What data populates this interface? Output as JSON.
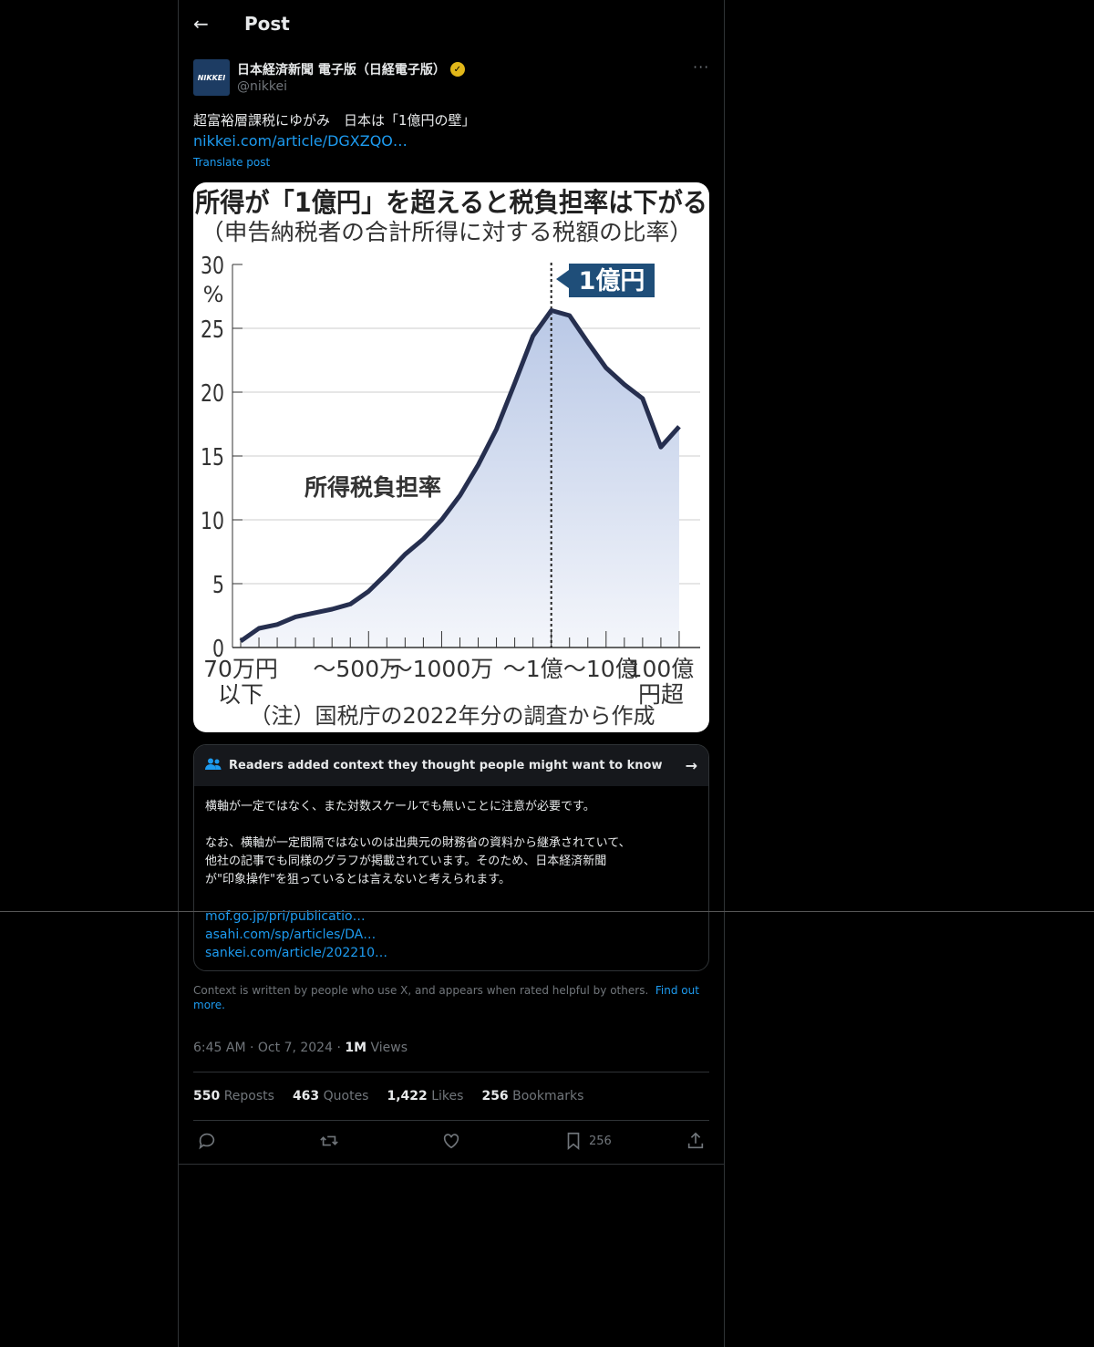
{
  "header": {
    "title": "Post",
    "back_icon": "arrow-left-icon"
  },
  "author": {
    "name": "日本経済新聞 電子版（日経電子版）",
    "handle": "@nikkei",
    "avatar_text": "NIKKEI",
    "verified": true,
    "verified_color": "#e2b719"
  },
  "post": {
    "text": "超富裕層課税にゆがみ　日本は「1億円の壁」",
    "link": "nikkei.com/article/DGXZQO…",
    "translate": "Translate post"
  },
  "chart_data": {
    "type": "area",
    "title": "所得が「1億円」を超えると税負担率は下がる",
    "subtitle": "（申告納税者の合計所得に対する税額の比率）",
    "series_label": "所得税負担率",
    "annotation": "1億円",
    "ylabel": "%",
    "ylim": [
      0,
      30
    ],
    "yticks": [
      0,
      5,
      10,
      15,
      20,
      25,
      30
    ],
    "values": [
      0.5,
      1.5,
      1.8,
      2.4,
      2.7,
      3.0,
      3.4,
      4.4,
      5.8,
      7.3,
      8.5,
      10.0,
      11.9,
      14.3,
      17.1,
      20.7,
      24.4,
      26.4,
      26.0,
      23.9,
      21.9,
      20.6,
      19.5,
      15.7,
      17.3
    ],
    "marker_index": 17,
    "xtick_labels": [
      {
        "index": 0,
        "lines": [
          "70万円",
          "以下"
        ]
      },
      {
        "index": 7,
        "lines": [
          "～500万"
        ]
      },
      {
        "index": 11,
        "lines": [
          "～1000万"
        ]
      },
      {
        "index": 17,
        "lines": [
          "～1億"
        ]
      },
      {
        "index": 20,
        "lines": [
          "～10億"
        ]
      },
      {
        "index": 24,
        "lines": [
          "100億",
          "円超"
        ]
      }
    ],
    "note": "（注）国税庁の2022年分の調査から作成",
    "grid": true,
    "colors": {
      "line": "#262f4f",
      "fill": "#b9c8e6",
      "label_bg": "#1f4e79"
    }
  },
  "community_note": {
    "header": "Readers added context they thought people might want to know",
    "body": "横軸が一定ではなく、また対数スケールでも無いことに注意が必要です。\n\nなお、横軸が一定間隔ではないのは出典元の財務省の資料から継承されていて、\n他社の記事でも同様のグラフが掲載されています。そのため、日本経済新聞\nが\"印象操作\"を狙っているとは言えないと考えられます。",
    "links": [
      "mof.go.jp/pri/publicatio…",
      "asahi.com/sp/articles/DA…",
      "sankei.com/article/202210…"
    ],
    "footer": "Context is written by people who use X, and appears when rated helpful by others.",
    "footer_link": "Find out more."
  },
  "meta": {
    "time": "6:45 AM",
    "date": "Oct 7, 2024",
    "views_count": "1M",
    "views_label": "Views"
  },
  "stats": [
    {
      "count": "550",
      "label": "Reposts"
    },
    {
      "count": "463",
      "label": "Quotes"
    },
    {
      "count": "1,422",
      "label": "Likes"
    },
    {
      "count": "256",
      "label": "Bookmarks"
    }
  ],
  "actions": {
    "bookmark_count": "256"
  },
  "accent": "#1d9bf0"
}
